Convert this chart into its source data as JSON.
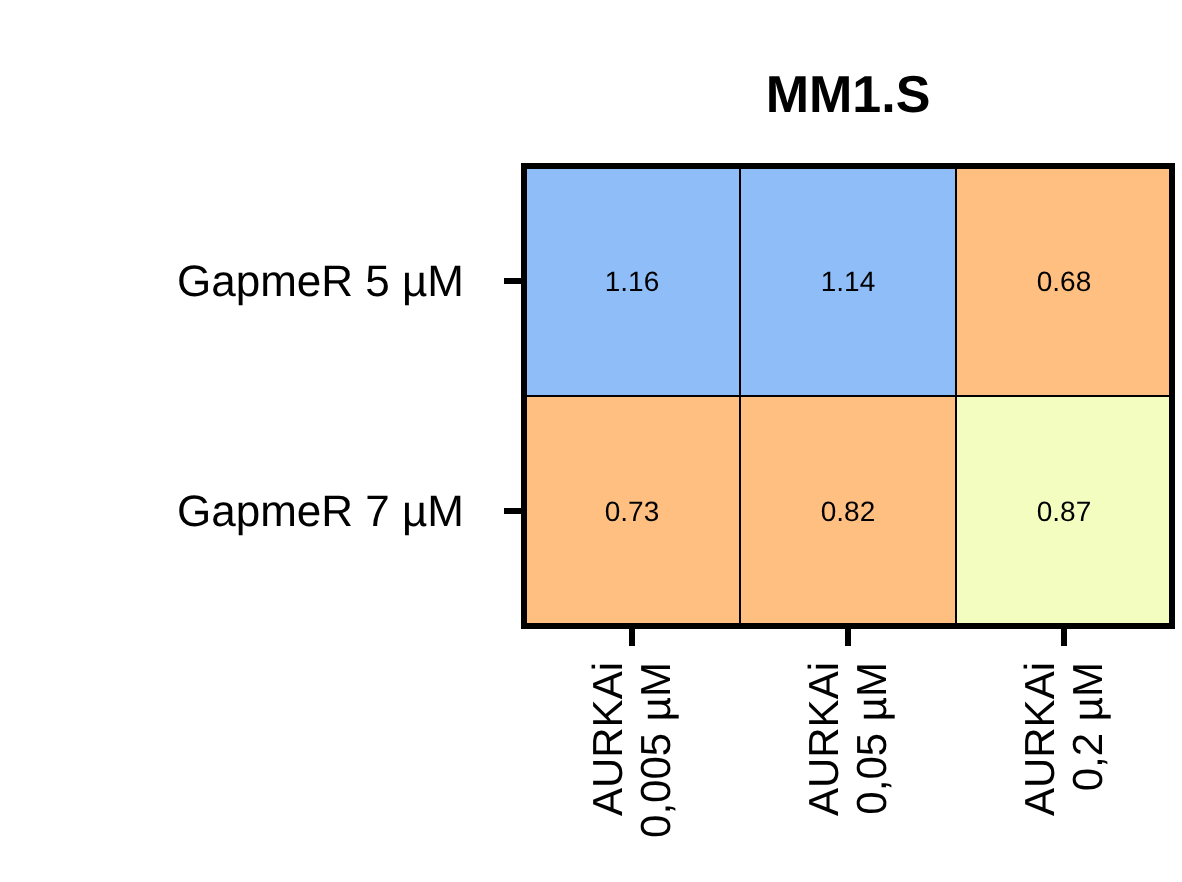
{
  "chart_data": {
    "type": "heatmap",
    "title": "MM1.S",
    "categories": [
      "AURKAi\n0,005 µM",
      "AURKAi\n0,05 µM",
      "AURKAi\n0,2 µM"
    ],
    "y_categories": [
      "GapmeR 5 µM",
      "GapmeR 7 µM"
    ],
    "cells": [
      [
        1.16,
        1.14,
        0.68
      ],
      [
        0.73,
        0.82,
        0.87
      ]
    ],
    "colors": [
      [
        "#8fbdf7",
        "#8fbdf7",
        "#ffbf80"
      ],
      [
        "#ffbf80",
        "#ffbf80",
        "#f2fdbf"
      ]
    ],
    "data_labels": true
  }
}
